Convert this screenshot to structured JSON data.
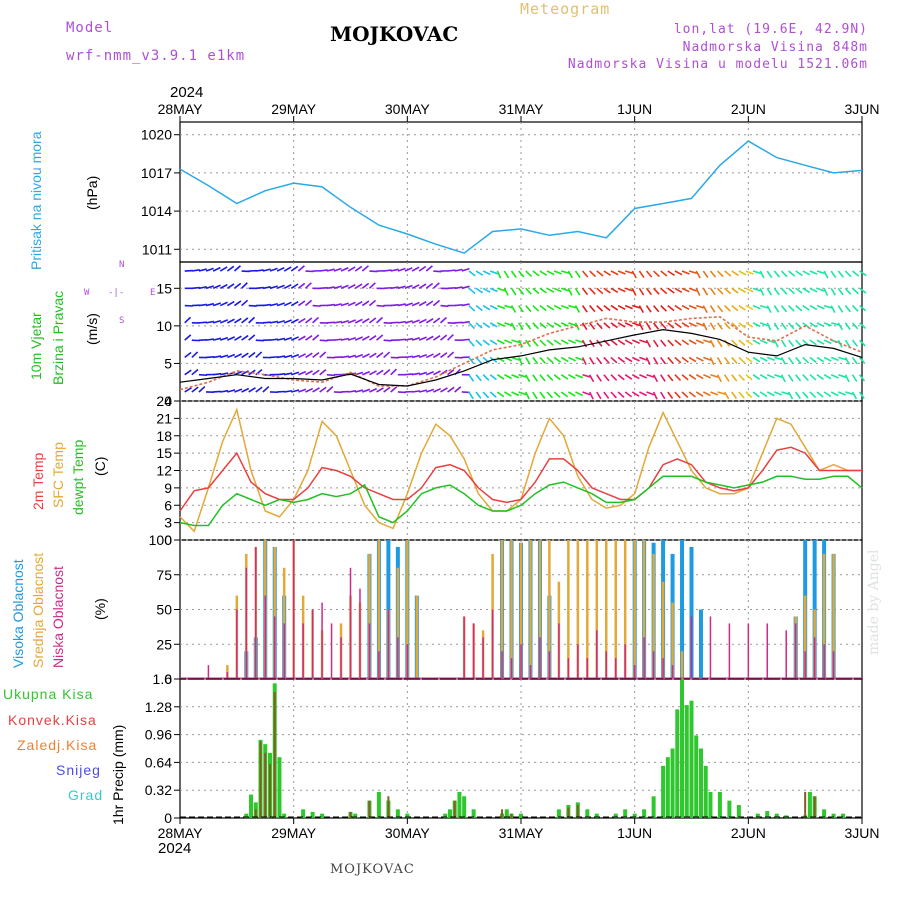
{
  "header": {
    "model_label": "Model",
    "model_name": "wrf-nmm_v3.9.1 e1km",
    "title": "MOJKOVAC",
    "meteogram": "Meteogram",
    "lonlat": "lon,lat (19.6E, 42.9N)",
    "altitude": "Nadmorska Visina 848m",
    "model_altitude": "Nadmorska Visina u modelu 1521.06m"
  },
  "footer": {
    "place": "MOJKOVAC",
    "watermark": "made by Angel"
  },
  "time_axis": {
    "year": "2024",
    "labels": [
      "28MAY",
      "29MAY",
      "30MAY",
      "31MAY",
      "1JUN",
      "2JUN",
      "3JUN"
    ]
  },
  "panels": {
    "pressure": {
      "label": "Pritisak na nivou mora",
      "unit": "(hPa)"
    },
    "wind": {
      "label1": "10m Vjetar",
      "label2": "Brzina i Pravac",
      "unit": "(m/s)",
      "compass": {
        "n": "N",
        "s": "S",
        "e": "E",
        "w": "W",
        "center": "-|-",
        "arrow": "<",
        "left": "<",
        "sep": "-"
      }
    },
    "temp": {
      "label1": "2m Temp",
      "label2": "SFC Temp",
      "label3": "dewpt Temp",
      "unit": "(C)"
    },
    "cloud": {
      "label1": "Visoka Oblacnost",
      "label2": "Srednja Oblacnost",
      "label3": "Niska Oblacnost",
      "unit": "(%)"
    },
    "precip": {
      "unit": "1hr Precip (mm)",
      "legend": [
        "Ukupna Kisa",
        "Konvek.Kisa",
        "Zaledj.Kisa",
        "Snijeg",
        "Grad"
      ]
    }
  },
  "colors": {
    "pressure": "#2ba8e6",
    "t2m": "#e84040",
    "tsfc": "#e3a838",
    "dewpt": "#22c022",
    "cloud_high": "#1e9be0",
    "cloud_mid": "#e3a838",
    "cloud_low": "#cc2b8a",
    "rain_total": "#2ec72e",
    "rain_conv": "#e84040",
    "rain_frz": "#f08030",
    "snow": "#4b4be6",
    "hail": "#38c8c8",
    "label_purple": "#b04fd6"
  },
  "chart_data": [
    {
      "type": "line",
      "x_unit": "hours since 28MAY 00UTC",
      "ylim": [
        1010,
        1021
      ],
      "yticks": [
        1011,
        1014,
        1017,
        1020
      ],
      "series": [
        {
          "x": [
            0,
            6,
            12,
            18,
            24,
            30,
            36,
            42,
            48,
            54,
            60,
            66,
            72,
            78,
            84,
            90,
            96,
            102,
            108,
            114,
            120,
            126,
            132,
            138,
            144
          ],
          "values": [
            1017.3,
            1016.0,
            1014.6,
            1015.6,
            1016.2,
            1015.9,
            1014.3,
            1012.9,
            1012.2,
            1011.4,
            1010.7,
            1012.4,
            1012.6,
            1012.1,
            1012.4,
            1011.9,
            1014.2,
            1014.6,
            1015.0,
            1017.6,
            1019.5,
            1018.2,
            1017.6,
            1017.0,
            1017.2
          ]
        }
      ],
      "grid": true
    },
    {
      "type": "line",
      "x_unit": "hours since 28MAY 00UTC",
      "ylim": [
        0,
        18.5
      ],
      "yticks": [
        0,
        5,
        10,
        15
      ],
      "series": [
        {
          "x": [
            0,
            6,
            12,
            18,
            24,
            30,
            36,
            42,
            48,
            54,
            60,
            66,
            72,
            78,
            84,
            90,
            96,
            102,
            108,
            114,
            120,
            126,
            132,
            138,
            144
          ],
          "values": [
            2.5,
            3.0,
            3.5,
            3.0,
            3.0,
            2.8,
            3.6,
            2.2,
            2.0,
            2.8,
            4.0,
            5.5,
            6.0,
            6.8,
            7.2,
            8.0,
            8.8,
            9.5,
            9.0,
            8.2,
            6.5,
            6.0,
            7.5,
            7.0,
            5.8
          ]
        },
        {
          "x": [
            0,
            6,
            12,
            18,
            24,
            30,
            36,
            42,
            48,
            54,
            60,
            66,
            72,
            78,
            84,
            90,
            96,
            102,
            108,
            114,
            120,
            126,
            132,
            138,
            144
          ],
          "values": [
            1.5,
            2.5,
            4.0,
            3.5,
            2.8,
            2.5,
            3.8,
            2.0,
            2.0,
            3.2,
            5.0,
            6.8,
            7.5,
            9.0,
            10.0,
            11.0,
            10.5,
            10.5,
            11.0,
            11.2,
            8.5,
            8.0,
            10.0,
            8.0,
            6.5
          ]
        }
      ],
      "grid": true
    },
    {
      "type": "line",
      "x_unit": "hours since 28MAY 00UTC",
      "ylim": [
        0,
        24
      ],
      "yticks": [
        0,
        3,
        6,
        9,
        12,
        15,
        18,
        21,
        24
      ],
      "series": [
        {
          "x": [
            0,
            3,
            6,
            9,
            12,
            15,
            18,
            21,
            24,
            27,
            30,
            33,
            36,
            39,
            42,
            45,
            48,
            51,
            54,
            57,
            60,
            63,
            66,
            69,
            72,
            75,
            78,
            81,
            84,
            87,
            90,
            93,
            96,
            99,
            102,
            105,
            108,
            111,
            114,
            117,
            120,
            123,
            126,
            129,
            132,
            135,
            138,
            141,
            144
          ],
          "values": [
            5,
            8.5,
            9,
            12,
            15,
            10,
            8,
            7,
            7,
            9,
            12.5,
            12,
            11,
            9,
            8,
            7,
            7,
            9,
            12.5,
            13,
            12,
            9,
            7,
            6.5,
            7,
            10,
            14,
            14,
            12,
            9,
            8,
            7,
            7,
            9,
            13,
            14,
            13,
            10,
            9,
            8.5,
            9,
            12,
            15.5,
            16,
            15,
            12,
            12,
            12,
            12
          ]
        },
        {
          "x": [
            0,
            3,
            6,
            9,
            12,
            15,
            18,
            21,
            24,
            27,
            30,
            33,
            36,
            39,
            42,
            45,
            48,
            51,
            54,
            57,
            60,
            63,
            66,
            69,
            72,
            75,
            78,
            81,
            84,
            87,
            90,
            93,
            96,
            99,
            102,
            105,
            108,
            111,
            114,
            117,
            120,
            123,
            126,
            129,
            132,
            135,
            138,
            141,
            144
          ],
          "values": [
            4,
            1.5,
            9,
            17,
            22.5,
            12,
            5,
            4,
            7,
            12,
            20.5,
            18,
            12,
            6,
            3,
            2,
            8,
            15,
            20,
            18,
            14,
            8,
            5,
            5,
            7,
            15,
            21,
            18,
            11,
            7,
            5.5,
            6,
            8,
            16,
            22,
            17,
            12,
            9,
            8,
            8,
            9,
            15,
            21,
            20,
            16,
            12,
            13,
            12,
            12
          ]
        },
        {
          "x": [
            0,
            3,
            6,
            9,
            12,
            15,
            18,
            21,
            24,
            27,
            30,
            33,
            36,
            39,
            42,
            45,
            48,
            51,
            54,
            57,
            60,
            63,
            66,
            69,
            72,
            75,
            78,
            81,
            84,
            87,
            90,
            93,
            96,
            99,
            102,
            105,
            108,
            111,
            114,
            117,
            120,
            123,
            126,
            129,
            132,
            135,
            138,
            141,
            144
          ],
          "values": [
            3,
            2.5,
            2.5,
            6,
            8,
            7,
            6,
            7,
            6.5,
            7,
            8,
            7.5,
            8,
            9.5,
            4,
            3,
            5,
            8,
            9,
            9.5,
            8,
            6,
            5,
            5,
            6,
            8,
            9.5,
            10,
            9,
            8,
            6.5,
            6.5,
            7,
            9,
            11,
            11,
            11,
            10,
            9.5,
            9,
            9.5,
            10,
            11,
            11,
            10.5,
            10.5,
            11,
            11,
            9
          ]
        }
      ],
      "grid": true
    },
    {
      "type": "bar",
      "x_unit": "hours since 28MAY 00UTC",
      "ylim": [
        0,
        100
      ],
      "yticks": [
        0,
        25,
        50,
        75,
        100
      ],
      "series": [
        {
          "x": [
            14,
            16,
            18,
            20,
            22,
            40,
            42,
            44,
            46,
            48,
            50,
            68,
            70,
            72,
            74,
            76,
            78,
            96,
            98,
            100,
            102,
            104,
            106,
            108,
            110,
            130,
            132,
            134,
            136,
            138
          ],
          "values": [
            20,
            30,
            100,
            95,
            60,
            90,
            100,
            100,
            95,
            100,
            60,
            100,
            100,
            98,
            100,
            100,
            60,
            100,
            100,
            98,
            100,
            90,
            100,
            95,
            50,
            45,
            100,
            100,
            100,
            90
          ]
        },
        {
          "x": [
            10,
            12,
            14,
            16,
            18,
            20,
            22,
            24,
            26,
            28,
            30,
            34,
            36,
            38,
            40,
            42,
            44,
            46,
            48,
            50,
            60,
            62,
            64,
            66,
            68,
            70,
            72,
            74,
            76,
            78,
            80,
            82,
            84,
            86,
            88,
            90,
            92,
            94,
            96,
            98,
            100,
            102,
            104,
            106,
            130,
            132,
            134,
            136,
            138
          ],
          "values": [
            10,
            60,
            90,
            95,
            100,
            95,
            80,
            100,
            60,
            50,
            35,
            40,
            60,
            55,
            90,
            100,
            50,
            80,
            100,
            60,
            45,
            40,
            35,
            90,
            100,
            100,
            98,
            100,
            100,
            100,
            70,
            100,
            100,
            100,
            100,
            100,
            100,
            100,
            100,
            100,
            90,
            70,
            55,
            20,
            45,
            60,
            50,
            90,
            90
          ]
        },
        {
          "x": [
            6,
            10,
            12,
            14,
            16,
            18,
            20,
            22,
            24,
            26,
            28,
            30,
            32,
            34,
            36,
            38,
            40,
            42,
            44,
            46,
            48,
            60,
            62,
            64,
            66,
            68,
            70,
            72,
            74,
            76,
            78,
            80,
            82,
            84,
            86,
            88,
            90,
            92,
            94,
            96,
            98,
            100,
            102,
            104,
            108,
            112,
            116,
            120,
            124,
            128,
            130,
            132,
            134,
            136,
            138
          ],
          "values": [
            10,
            5,
            50,
            80,
            95,
            60,
            45,
            40,
            100,
            40,
            50,
            55,
            40,
            30,
            80,
            65,
            40,
            20,
            50,
            30,
            25,
            45,
            40,
            30,
            50,
            20,
            15,
            25,
            10,
            30,
            20,
            40,
            15,
            25,
            15,
            35,
            20,
            15,
            25,
            10,
            30,
            20,
            15,
            10,
            45,
            45,
            40,
            40,
            40,
            35,
            40,
            20,
            30,
            25,
            20
          ]
        }
      ],
      "grid": true
    },
    {
      "type": "bar",
      "x_unit": "hours since 28MAY 00UTC",
      "ylim": [
        0,
        1.6
      ],
      "yticks": [
        0,
        0.32,
        0.64,
        0.96,
        1.28,
        1.6
      ],
      "series": [
        {
          "x": [
            14,
            15,
            16,
            17,
            18,
            19,
            20,
            21,
            22,
            26,
            28,
            30,
            36,
            37,
            40,
            42,
            44,
            46,
            48,
            56,
            57,
            58,
            59,
            60,
            62,
            68,
            69,
            70,
            72,
            80,
            82,
            84,
            86,
            88,
            92,
            94,
            96,
            98,
            100,
            102,
            103,
            104,
            105,
            106,
            107,
            108,
            109,
            110,
            111,
            112,
            114,
            116,
            118,
            122,
            124,
            126,
            128,
            132,
            133,
            134,
            136,
            138,
            140
          ],
          "values": [
            0.05,
            0.27,
            0.18,
            0.9,
            0.85,
            0.75,
            1.55,
            0.7,
            0.05,
            0.1,
            0.07,
            0.05,
            0.07,
            0.05,
            0.2,
            0.3,
            0.2,
            0.1,
            0.05,
            0.05,
            0.1,
            0.2,
            0.3,
            0.25,
            0.1,
            0.05,
            0.1,
            0.05,
            0.05,
            0.1,
            0.15,
            0.18,
            0.1,
            0.05,
            0.05,
            0.1,
            0.05,
            0.1,
            0.25,
            0.6,
            0.7,
            0.8,
            1.25,
            1.6,
            1.3,
            1.35,
            0.95,
            0.8,
            0.6,
            0.3,
            0.3,
            0.2,
            0.15,
            0.05,
            0.08,
            0.05,
            0.03,
            0.03,
            0.3,
            0.25,
            0.1,
            0.05,
            0.05
          ]
        },
        {
          "x": [
            16,
            17,
            18,
            19,
            20,
            36,
            40,
            44,
            58,
            68,
            70,
            82,
            84,
            132,
            134
          ],
          "values": [
            0.1,
            0.88,
            0.75,
            0.62,
            1.45,
            0.07,
            0.2,
            0.25,
            0.2,
            0.1,
            0.05,
            0.12,
            0.15,
            0.3,
            0.25
          ]
        }
      ],
      "grid": true
    }
  ]
}
